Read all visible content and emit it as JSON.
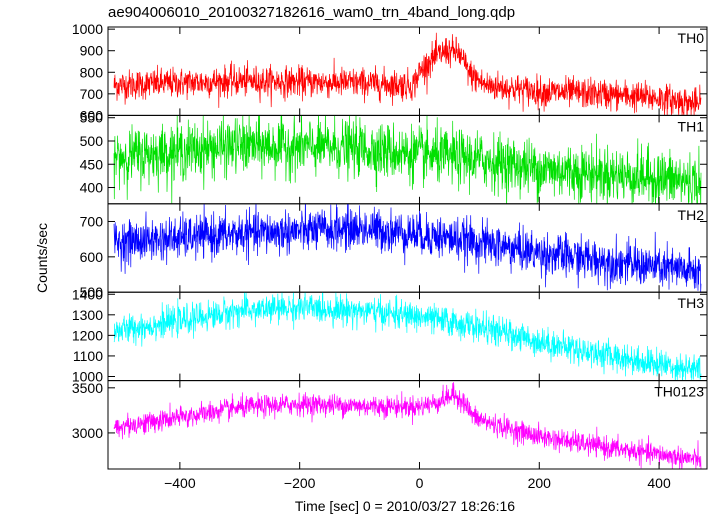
{
  "chart_data": {
    "type": "line",
    "title": "ae904006010_20100327182616_wam0_trn_4band_long.qdp",
    "xlabel": "Time [sec] 0 = 2010/03/27 18:26:16",
    "ylabel": "Counts/sec",
    "xlim": [
      -520,
      480
    ],
    "xticks": [
      -400,
      -200,
      0,
      200,
      400
    ],
    "grid": false,
    "panels": [
      {
        "name": "TH0",
        "color": "#ff0000",
        "ylim": [
          600,
          1010
        ],
        "yticks": [
          600,
          700,
          800,
          900,
          1000
        ],
        "noise": 35,
        "trend": [
          [
            -510,
            740
          ],
          [
            -300,
            760
          ],
          [
            -100,
            750
          ],
          [
            -10,
            740
          ],
          [
            0,
            800
          ],
          [
            20,
            860
          ],
          [
            45,
            900
          ],
          [
            65,
            890
          ],
          [
            85,
            790
          ],
          [
            110,
            740
          ],
          [
            200,
            710
          ],
          [
            300,
            700
          ],
          [
            400,
            680
          ],
          [
            470,
            650
          ]
        ]
      },
      {
        "name": "TH1",
        "color": "#00e000",
        "ylim": [
          365,
          555
        ],
        "yticks": [
          400,
          450,
          500,
          550
        ],
        "noise": 30,
        "trend": [
          [
            -510,
            465
          ],
          [
            -300,
            490
          ],
          [
            -100,
            485
          ],
          [
            0,
            470
          ],
          [
            100,
            460
          ],
          [
            200,
            440
          ],
          [
            300,
            430
          ],
          [
            400,
            420
          ],
          [
            470,
            410
          ]
        ]
      },
      {
        "name": "TH2",
        "color": "#0000ff",
        "ylim": [
          500,
          750
        ],
        "yticks": [
          500,
          600,
          700
        ],
        "noise": 30,
        "trend": [
          [
            -510,
            640
          ],
          [
            -300,
            665
          ],
          [
            -100,
            680
          ],
          [
            0,
            665
          ],
          [
            100,
            640
          ],
          [
            200,
            610
          ],
          [
            300,
            590
          ],
          [
            400,
            570
          ],
          [
            470,
            555
          ]
        ]
      },
      {
        "name": "TH3",
        "color": "#00ffff",
        "ylim": [
          980,
          1410
        ],
        "yticks": [
          1000,
          1100,
          1200,
          1300,
          1400
        ],
        "noise": 35,
        "trend": [
          [
            -510,
            1220
          ],
          [
            -400,
            1270
          ],
          [
            -300,
            1320
          ],
          [
            -200,
            1335
          ],
          [
            -100,
            1320
          ],
          [
            0,
            1290
          ],
          [
            100,
            1240
          ],
          [
            200,
            1170
          ],
          [
            300,
            1110
          ],
          [
            400,
            1060
          ],
          [
            470,
            1030
          ]
        ]
      },
      {
        "name": "TH0123",
        "color": "#ff00ff",
        "ylim": [
          2600,
          3580
        ],
        "yticks": [
          3000,
          3500
        ],
        "noise": 60,
        "trend": [
          [
            -510,
            3060
          ],
          [
            -400,
            3170
          ],
          [
            -300,
            3280
          ],
          [
            -200,
            3320
          ],
          [
            -100,
            3300
          ],
          [
            0,
            3290
          ],
          [
            30,
            3340
          ],
          [
            55,
            3420
          ],
          [
            70,
            3380
          ],
          [
            90,
            3180
          ],
          [
            120,
            3100
          ],
          [
            200,
            2960
          ],
          [
            300,
            2850
          ],
          [
            400,
            2760
          ],
          [
            470,
            2700
          ]
        ]
      }
    ]
  }
}
